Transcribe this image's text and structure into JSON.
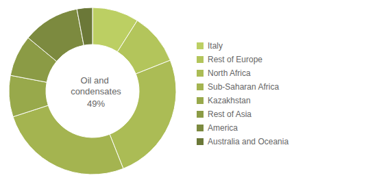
{
  "chart_data": {
    "type": "pie",
    "title": "Oil and condensates",
    "subtitle": "49%",
    "categories": [
      "Italy",
      "Rest of Europe",
      "North Africa",
      "Sub-Saharan Africa",
      "Kazakhstan",
      "Rest of Asia",
      "America",
      "Australia and Oceania"
    ],
    "values": [
      9,
      10,
      25,
      26,
      8,
      8,
      11,
      3
    ],
    "colors": [
      "#bccf63",
      "#b3c55b",
      "#abbc55",
      "#a4b450",
      "#98a94b",
      "#8b9b45",
      "#7c8a3f",
      "#6b7838"
    ],
    "legend": "right"
  }
}
